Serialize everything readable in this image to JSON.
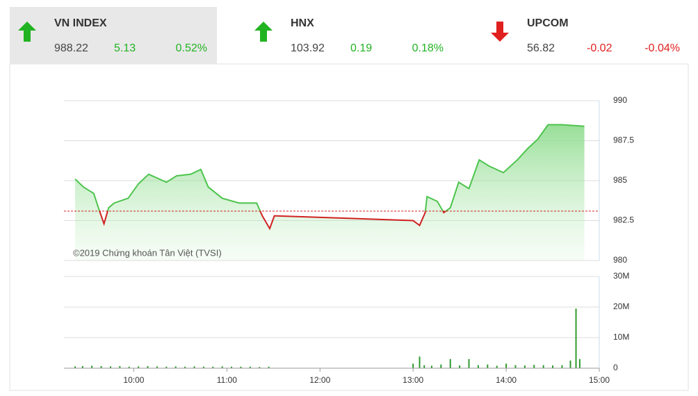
{
  "tickers": [
    {
      "name": "VN INDEX",
      "value": "988.22",
      "change": "5.13",
      "percent": "0.52%",
      "trend": "up",
      "color": "#22b322",
      "selected": true
    },
    {
      "name": "HNX",
      "value": "103.92",
      "change": "0.19",
      "percent": "0.18%",
      "trend": "up",
      "color": "#22b322",
      "selected": false
    },
    {
      "name": "UPCOM",
      "value": "56.82",
      "change": "-0.02",
      "percent": "-0.04%",
      "trend": "down",
      "color": "#e0201f",
      "selected": false
    }
  ],
  "chart_data": [
    {
      "type": "line",
      "annotation": "©2019 Chứng khoán Tân Việt (TVSI)",
      "xlim": [
        9.25,
        15
      ],
      "ylim": [
        980,
        990
      ],
      "yticks": [
        980,
        982.5,
        985,
        987.5,
        990
      ],
      "reference_value": 983.09,
      "reference_color": "#d02020",
      "up_color": "#4cc44c",
      "down_color": "#d02020",
      "grid": true,
      "series": [
        {
          "name": "VN INDEX",
          "x": [
            9.37,
            9.46,
            9.57,
            9.62,
            9.68,
            9.73,
            9.79,
            9.94,
            10.05,
            10.16,
            10.35,
            10.46,
            10.61,
            10.72,
            10.8,
            10.95,
            11.13,
            11.32,
            11.38,
            11.46,
            11.51,
            13.0,
            13.07,
            13.13,
            13.15,
            13.26,
            13.33,
            13.4,
            13.49,
            13.6,
            13.71,
            13.82,
            13.97,
            14.12,
            14.23,
            14.34,
            14.45,
            14.6,
            14.84
          ],
          "values": [
            985.1,
            984.6,
            984.2,
            983.3,
            982.3,
            983.3,
            983.6,
            983.9,
            984.8,
            985.4,
            984.9,
            985.3,
            985.4,
            985.7,
            984.6,
            983.9,
            983.6,
            983.6,
            982.8,
            982.0,
            982.8,
            982.5,
            982.2,
            983.0,
            984.0,
            983.7,
            983.0,
            983.3,
            984.9,
            984.5,
            986.3,
            985.9,
            985.5,
            986.3,
            987.0,
            987.6,
            988.5,
            988.5,
            988.4
          ]
        }
      ]
    },
    {
      "type": "bar",
      "color": "#2e9a2e",
      "xlim": [
        9.25,
        15
      ],
      "ylim": [
        0,
        30
      ],
      "yticks": [
        0,
        {
          "value": 10,
          "label": "10M"
        },
        {
          "value": 20,
          "label": "20M"
        },
        {
          "value": 30,
          "label": "30M"
        }
      ],
      "xticks": [
        {
          "value": 10,
          "label": "10:00"
        },
        {
          "value": 11,
          "label": "11:00"
        },
        {
          "value": 12,
          "label": "12:00"
        },
        {
          "value": 13,
          "label": "13:00"
        },
        {
          "value": 14,
          "label": "14:00"
        },
        {
          "value": 15,
          "label": "15:00"
        }
      ],
      "x": [
        9.37,
        9.45,
        9.55,
        9.65,
        9.75,
        9.85,
        9.95,
        10.05,
        10.15,
        10.25,
        10.35,
        10.45,
        10.55,
        10.65,
        10.75,
        10.85,
        10.95,
        11.05,
        11.15,
        11.25,
        11.35,
        11.45,
        13.0,
        13.07,
        13.12,
        13.2,
        13.3,
        13.4,
        13.5,
        13.6,
        13.7,
        13.8,
        13.9,
        14.0,
        14.1,
        14.2,
        14.3,
        14.4,
        14.5,
        14.6,
        14.69,
        14.75,
        14.79
      ],
      "values": [
        0.6,
        0.7,
        0.8,
        0.7,
        0.6,
        0.7,
        0.5,
        0.6,
        0.7,
        0.6,
        0.5,
        0.6,
        0.5,
        0.6,
        0.5,
        0.5,
        0.6,
        0.5,
        0.5,
        0.5,
        0.4,
        0.5,
        1.5,
        3.8,
        1.0,
        0.8,
        1.2,
        3.0,
        0.9,
        3.0,
        1.0,
        1.2,
        0.8,
        1.5,
        1.0,
        0.9,
        1.1,
        1.0,
        0.9,
        1.0,
        2.5,
        19.5,
        3.0
      ]
    }
  ]
}
